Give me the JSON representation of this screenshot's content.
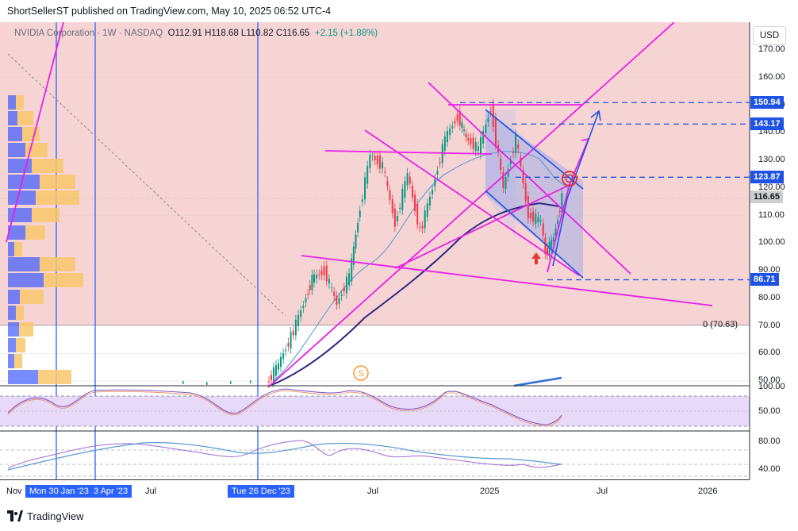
{
  "header": {
    "attribution": "ShortSellerST published on TradingView.com, May 10, 2025 06:52 UTC-4"
  },
  "legend": {
    "symbol": "NVIDIA Corporation · 1W · NASDAQ",
    "ohlc": "O112.91 H118.68 L110.82 C116.65",
    "change": "+2.15 (+1.88%)"
  },
  "currency_button": "USD",
  "footer": {
    "brand": "TradingView"
  },
  "colors": {
    "pink_zone": "#f7d4d4",
    "magenta_line": "#e91ee9",
    "blue_dashed": "#1e53e5",
    "vertical_line": "#2962ff",
    "sma_dark": "#2d2a80",
    "sma_light": "#5b9bd5",
    "rsi_band": "#e7d9f8",
    "candle_up": "#089981",
    "candle_down": "#f23645",
    "volume_profile_blue": "#3d5afe",
    "volume_profile_orange": "#f9c76b"
  },
  "chart_data": {
    "type": "line",
    "title": "NVIDIA Corporation · 1W · NASDAQ",
    "x_axis_labels": [
      "Nov",
      "Mon 30 Jan '23",
      "3 Apr '23",
      "Jul",
      "Tue 26 Dec '23",
      "Jul",
      "2025",
      "Jul",
      "2026"
    ],
    "highlighted_x_labels": [
      "Mon 30 Jan '23",
      "3 Apr '23",
      "Tue 26 Dec '23"
    ],
    "y_axis_labels": [
      "170.00",
      "160.00",
      "150.00",
      "140.00",
      "130.00",
      "120.00",
      "110.00",
      "100.00",
      "90.00",
      "80.00",
      "70.00",
      "60.00",
      "50.00"
    ],
    "ylim": [
      48,
      175
    ],
    "price_levels": [
      {
        "label": "150.94",
        "value": 150.94
      },
      {
        "label": "143.17",
        "value": 143.17
      },
      {
        "label": "123.87",
        "value": 123.87
      },
      {
        "label": "116.65",
        "value": 116.65,
        "current": true
      },
      {
        "label": "86.71",
        "value": 86.71
      }
    ],
    "zero_line_label": "0 (70.63)",
    "zero_line_value": 70.63,
    "price_series": {
      "name": "Close",
      "points": [
        [
          "2023-12-26",
          49
        ],
        [
          "2024-01-15",
          56
        ],
        [
          "2024-02-05",
          66
        ],
        [
          "2024-02-26",
          78
        ],
        [
          "2024-03-11",
          87
        ],
        [
          "2024-04-01",
          90
        ],
        [
          "2024-04-22",
          78
        ],
        [
          "2024-05-13",
          88
        ],
        [
          "2024-05-27",
          108
        ],
        [
          "2024-06-17",
          132
        ],
        [
          "2024-07-08",
          128
        ],
        [
          "2024-07-29",
          107
        ],
        [
          "2024-08-19",
          125
        ],
        [
          "2024-09-09",
          104
        ],
        [
          "2024-09-30",
          120
        ],
        [
          "2024-10-21",
          138
        ],
        [
          "2024-11-11",
          146
        ],
        [
          "2024-11-25",
          138
        ],
        [
          "2024-12-16",
          134
        ],
        [
          "2025-01-06",
          149
        ],
        [
          "2025-01-27",
          120
        ],
        [
          "2025-02-17",
          138
        ],
        [
          "2025-03-10",
          110
        ],
        [
          "2025-03-31",
          108
        ],
        [
          "2025-04-07",
          96
        ],
        [
          "2025-04-21",
          102
        ],
        [
          "2025-05-05",
          116.65
        ]
      ]
    },
    "rsi_panel": {
      "ylabels": [
        "100.00",
        "50.00"
      ],
      "ylim": [
        0,
        100
      ]
    },
    "lower_panel": {
      "ylabels": [
        "80.00",
        "40.00"
      ]
    }
  }
}
